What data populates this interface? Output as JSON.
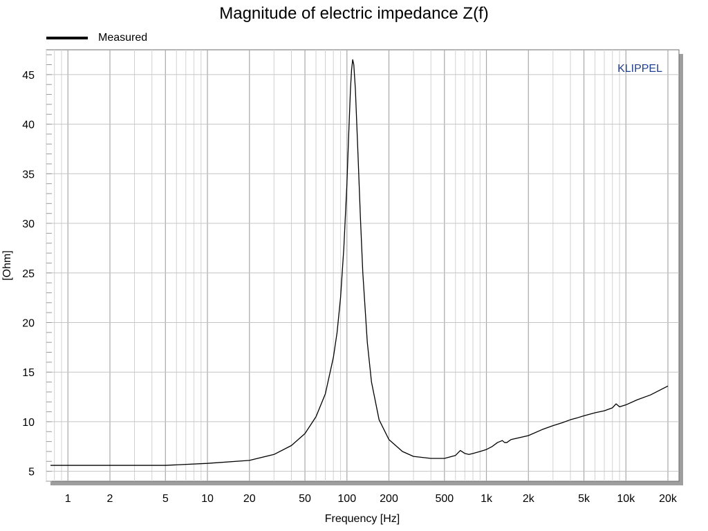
{
  "chart_data": {
    "type": "line",
    "title": "Magnitude of electric impedance Z(f)",
    "xlabel": "Frequency [Hz]",
    "ylabel": "[Ohm]",
    "x_scale": "log",
    "xlim": [
      0.7,
      24000
    ],
    "ylim": [
      4.0,
      47.5
    ],
    "grid": true,
    "legend_position": "top-left",
    "watermark": "KLIPPEL",
    "x_ticks": [
      {
        "value": 1,
        "label": "1"
      },
      {
        "value": 2,
        "label": "2"
      },
      {
        "value": 5,
        "label": "5"
      },
      {
        "value": 10,
        "label": "10"
      },
      {
        "value": 20,
        "label": "20"
      },
      {
        "value": 50,
        "label": "50"
      },
      {
        "value": 100,
        "label": "100"
      },
      {
        "value": 200,
        "label": "200"
      },
      {
        "value": 500,
        "label": "500"
      },
      {
        "value": 1000,
        "label": "1k"
      },
      {
        "value": 2000,
        "label": "2k"
      },
      {
        "value": 5000,
        "label": "5k"
      },
      {
        "value": 10000,
        "label": "10k"
      },
      {
        "value": 20000,
        "label": "20k"
      }
    ],
    "y_ticks": [
      {
        "value": 5,
        "label": "5"
      },
      {
        "value": 10,
        "label": "10"
      },
      {
        "value": 15,
        "label": "15"
      },
      {
        "value": 20,
        "label": "20"
      },
      {
        "value": 25,
        "label": "25"
      },
      {
        "value": 30,
        "label": "30"
      },
      {
        "value": 35,
        "label": "35"
      },
      {
        "value": 40,
        "label": "40"
      },
      {
        "value": 45,
        "label": "45"
      }
    ],
    "series": [
      {
        "name": "Measured",
        "color": "#000000",
        "x": [
          0.75,
          1,
          2,
          5,
          10,
          20,
          30,
          40,
          50,
          60,
          70,
          80,
          85,
          90,
          95,
          100,
          103,
          106,
          108,
          110,
          112,
          115,
          120,
          125,
          130,
          140,
          150,
          170,
          200,
          250,
          300,
          400,
          500,
          600,
          650,
          700,
          750,
          800,
          900,
          1000,
          1100,
          1200,
          1300,
          1350,
          1400,
          1500,
          2000,
          2500,
          3000,
          3500,
          4000,
          4500,
          5000,
          6000,
          7000,
          8000,
          8500,
          9000,
          10000,
          12000,
          15000,
          20000
        ],
        "y": [
          5.6,
          5.6,
          5.6,
          5.6,
          5.8,
          6.1,
          6.7,
          7.6,
          8.8,
          10.5,
          12.8,
          16.5,
          19.0,
          22.5,
          27.5,
          34.0,
          39.0,
          43.5,
          45.5,
          46.5,
          46.0,
          43.5,
          37.0,
          30.5,
          25.0,
          18.0,
          14.0,
          10.2,
          8.2,
          7.0,
          6.5,
          6.3,
          6.3,
          6.6,
          7.1,
          6.8,
          6.7,
          6.8,
          7.0,
          7.2,
          7.5,
          7.9,
          8.1,
          7.9,
          7.9,
          8.2,
          8.6,
          9.2,
          9.6,
          9.9,
          10.2,
          10.4,
          10.6,
          10.9,
          11.1,
          11.4,
          11.8,
          11.5,
          11.7,
          12.2,
          12.7,
          13.6
        ]
      }
    ]
  }
}
